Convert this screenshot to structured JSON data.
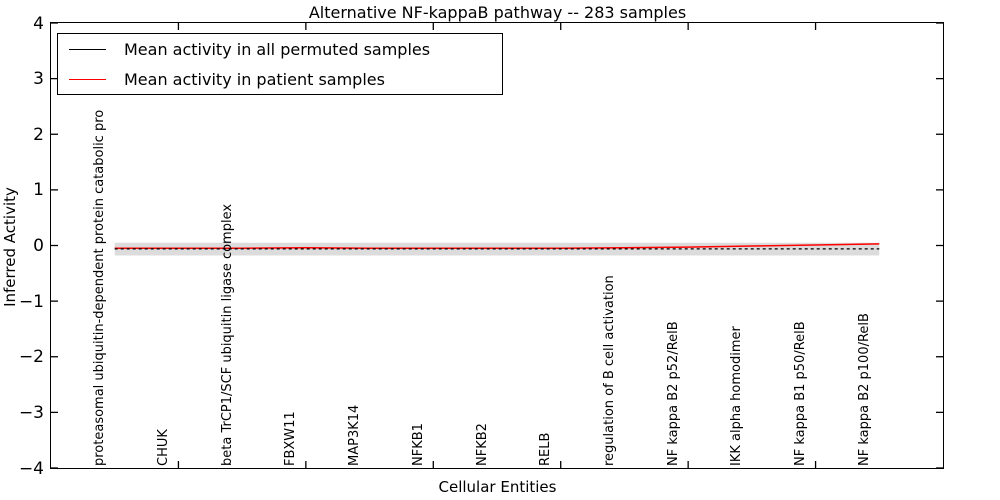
{
  "figure": {
    "background_color": "#ffffff",
    "frame_color": "#000000"
  },
  "legend": {
    "items": [
      {
        "label": "Mean activity in all permuted samples",
        "color": "#000000",
        "style": "solid"
      },
      {
        "label": "Mean activity in patient samples",
        "color": "#ff0000",
        "style": "solid"
      }
    ],
    "position": "upper left"
  },
  "chart_data": {
    "type": "line",
    "title": "Alternative NF-kappaB pathway -- 283 samples",
    "xlabel": "Cellular Entities",
    "ylabel": "Inferred Activity",
    "ylim": [
      -4,
      4
    ],
    "grid": false,
    "legend_position": "upper left",
    "y_tick_values": [
      4,
      3,
      2,
      1,
      0,
      -1,
      -2,
      -3,
      -4
    ],
    "y_ticks": [
      "4",
      "3",
      "2",
      "1",
      "0",
      "−1",
      "−2",
      "−3",
      "−4"
    ],
    "x_tick_marks": [
      2,
      4,
      6,
      8,
      10,
      12
    ],
    "categories": [
      "proteasomal ubiquitin-dependent protein catabolic pro",
      "CHUK",
      "beta TrCP1/SCF ubiquitin ligase complex",
      "FBXW11",
      "MAP3K14",
      "NFKB1",
      "NFKB2",
      "RELB",
      "regulation of B cell activation",
      "NF kappa B2 p52/RelB",
      "IKK alpha homodimer",
      "NF kappa B1 p50/RelB",
      "NF kappa B2 p100/RelB"
    ],
    "series": [
      {
        "name": "Mean activity in all permuted samples",
        "color": "#000000",
        "line_style": "dashed",
        "values": [
          -0.06,
          -0.06,
          -0.06,
          -0.06,
          -0.06,
          -0.06,
          -0.06,
          -0.06,
          -0.06,
          -0.06,
          -0.06,
          -0.06,
          -0.06
        ]
      },
      {
        "name": "Mean activity in patient samples",
        "color": "#ff0000",
        "line_style": "solid",
        "values": [
          -0.05,
          -0.05,
          -0.05,
          -0.04,
          -0.05,
          -0.05,
          -0.05,
          -0.05,
          -0.04,
          -0.03,
          -0.01,
          0.01,
          0.03
        ]
      }
    ],
    "band": {
      "name": "permuted samples envelope",
      "color": "#dcdcdc",
      "upper": [
        0.05,
        0.05,
        0.05,
        0.05,
        0.05,
        0.05,
        0.05,
        0.05,
        0.05,
        0.05,
        0.05,
        0.05,
        0.05
      ],
      "lower": [
        -0.18,
        -0.18,
        -0.18,
        -0.18,
        -0.18,
        -0.18,
        -0.18,
        -0.18,
        -0.18,
        -0.18,
        -0.18,
        -0.18,
        -0.18
      ]
    }
  }
}
